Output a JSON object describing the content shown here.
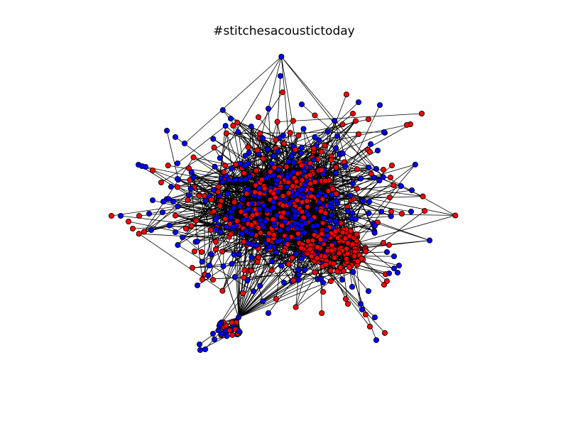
{
  "title": "#stitchesacoustictoday",
  "colors": {
    "background": "#ffffff",
    "edge": "#000000",
    "node_stroke": "#000000",
    "community_a": "#0000ff",
    "community_b": "#ff0000"
  },
  "chart_data": {
    "type": "network",
    "title": "#stitchesacoustictoday",
    "node_colors": [
      "#0000ff",
      "#ff0000"
    ],
    "legend": "none",
    "grid": false,
    "axes": "off"
  }
}
